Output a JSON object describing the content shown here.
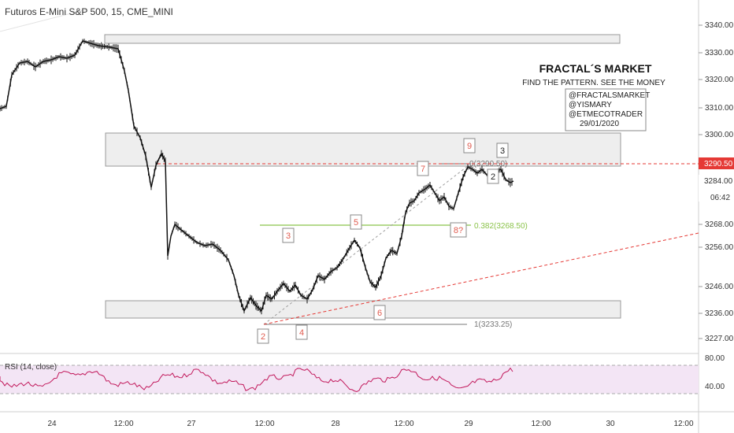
{
  "header": {
    "symbol_title": "Futuros E-Mini S&P 500, 15, CME_MINI"
  },
  "overlay": {
    "brand": "FRACTAL´S MARKET",
    "tagline": "FIND THE PATTERN. SEE THE MONEY",
    "credits": [
      "@FRACTALSMARKET",
      "@YISMARY",
      "@ETMECOTRADER",
      "29/01/2020"
    ]
  },
  "price_axis": {
    "ticks": [
      "3340.00",
      "3330.00",
      "3320.00",
      "3310.00",
      "3300.00",
      "3284.00",
      "3268.00",
      "3256.00",
      "3246.00",
      "3236.00",
      "3227.00"
    ],
    "last_price_label": "3290.50",
    "secondary_label": "3284.00",
    "countdown": "06:42"
  },
  "rsi": {
    "label": "RSI (14, close)",
    "ticks": [
      "80.00",
      "40.00"
    ]
  },
  "time_axis": {
    "labels": [
      "24",
      "12:00",
      "27",
      "12:00",
      "28",
      "12:00",
      "29",
      "12:00",
      "30",
      "12:00"
    ]
  },
  "wave_labels": [
    "2",
    "3",
    "4",
    "5",
    "6",
    "7",
    "8?",
    "9",
    "3",
    "2"
  ],
  "fib_labels": {
    "level_1": "1(3233.25)",
    "level_0382": "0.382(3268.50)",
    "level_0": "0(3290.50)"
  },
  "colors": {
    "wave_label": "#e05b4f",
    "black_label": "#222222",
    "fib_green": "#8bc34a",
    "dashed_red": "#e53935",
    "price_tag_bg": "#e53935",
    "rsi_line": "#c2185b",
    "rsi_band": "#f3e5f5",
    "zone_fill": "#eeeeee"
  }
}
